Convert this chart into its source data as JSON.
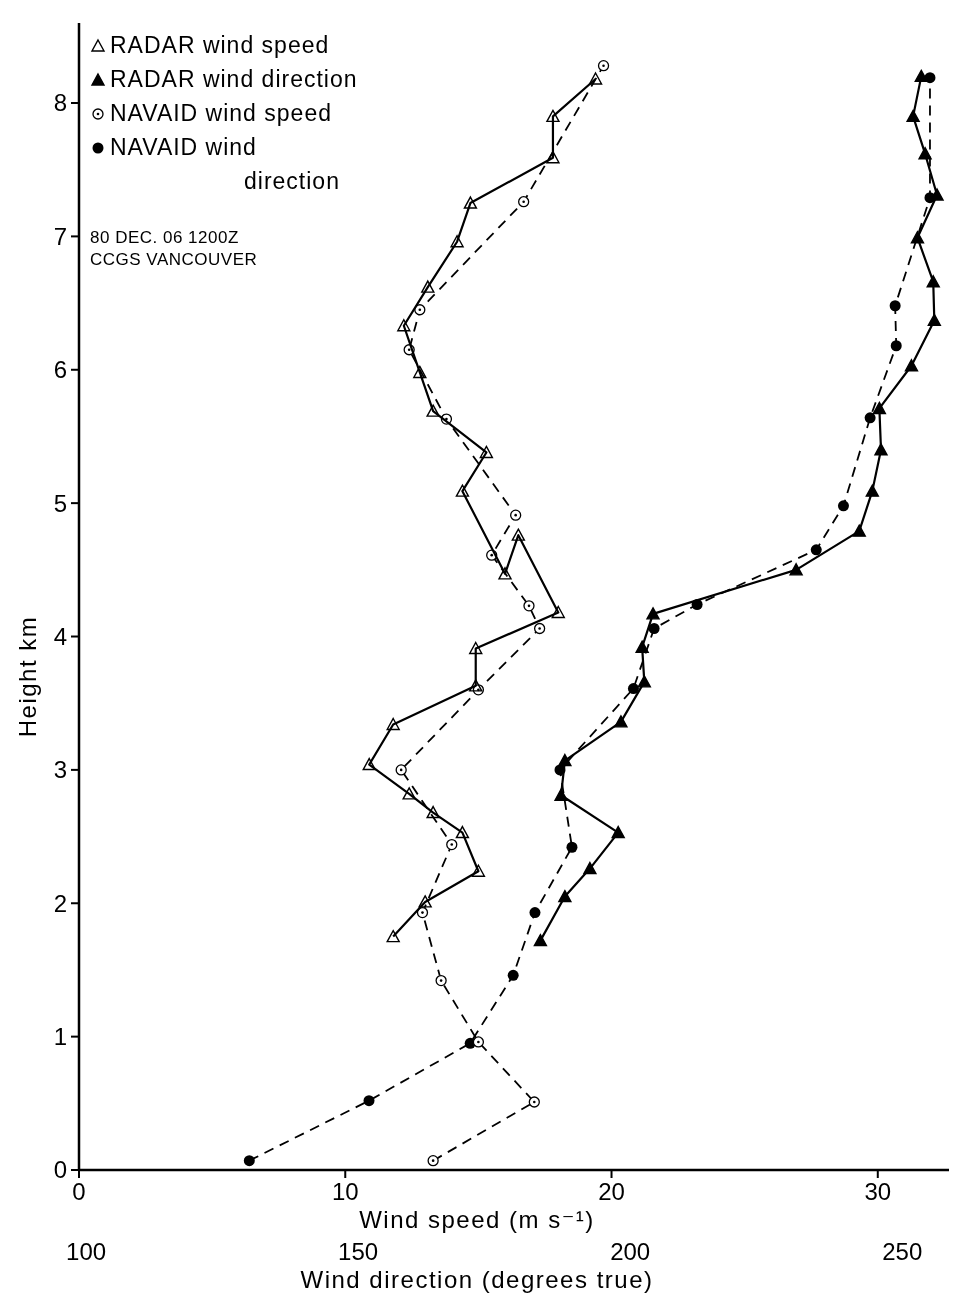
{
  "chart_data": {
    "type": "line",
    "xlabel": "Wind speed (m s⁻¹)",
    "x2label": "Wind direction (degrees true)",
    "ylabel": "Height  km",
    "xlim": [
      0,
      32.9
    ],
    "xticks": [
      0,
      10,
      20,
      30
    ],
    "x2lim": [
      98.7,
      259.7
    ],
    "x2ticks": [
      100,
      150,
      200,
      250
    ],
    "ylim": [
      0,
      8.6
    ],
    "yticks": [
      0,
      1,
      2,
      3,
      4,
      5,
      6,
      7,
      8
    ],
    "legend": "top left",
    "grid": false,
    "annotations": [
      "80 DEC. 06   1200Z",
      "CCGS VANCOUVER"
    ],
    "series": [
      {
        "name": "RADAR wind speed",
        "color": "#000000",
        "marker": "triangle",
        "line_style": "solid",
        "x": [
          11.8,
          13.0,
          15.0,
          14.4,
          13.3,
          12.4,
          10.9,
          11.8,
          14.9,
          14.9,
          18.0,
          16.5,
          16.0,
          14.4,
          15.3,
          13.3,
          12.8,
          12.2,
          13.1,
          14.2,
          14.7,
          17.8,
          17.8,
          19.4
        ],
        "values": [
          1.75,
          2.01,
          2.24,
          2.53,
          2.68,
          2.82,
          3.04,
          3.34,
          3.63,
          3.91,
          4.18,
          4.76,
          4.47,
          5.09,
          5.38,
          5.69,
          5.98,
          6.33,
          6.62,
          6.96,
          7.25,
          7.59,
          7.9,
          8.18
        ]
      },
      {
        "name": "RADAR wind direction",
        "color": "#000000",
        "marker": "triangle",
        "line_style": "solid",
        "axis": "x2",
        "x": [
          183.5,
          188.0,
          192.6,
          197.8,
          187.3,
          188.0,
          198.3,
          202.6,
          202.2,
          204.2,
          230.5,
          242.1,
          244.5,
          246.1,
          245.8,
          251.7,
          255.9,
          255.7,
          252.8,
          256.4,
          254.2,
          252.0,
          253.5
        ],
        "values": [
          1.72,
          2.05,
          2.26,
          2.53,
          2.81,
          3.07,
          3.36,
          3.66,
          3.92,
          4.17,
          4.5,
          4.79,
          5.09,
          5.4,
          5.71,
          6.03,
          6.37,
          6.66,
          6.99,
          7.31,
          7.62,
          7.9,
          8.2
        ]
      },
      {
        "name": "NAVAID wind speed",
        "color": "#000000",
        "marker": "circle",
        "line_style": "dashed",
        "x": [
          13.3,
          17.1,
          15.0,
          13.6,
          12.9,
          14.0,
          12.1,
          15.0,
          17.3,
          16.9,
          15.5,
          16.4,
          13.8,
          12.4,
          12.8,
          16.7,
          19.7
        ],
        "values": [
          0.07,
          0.51,
          0.96,
          1.42,
          1.93,
          2.44,
          3.0,
          3.6,
          4.06,
          4.23,
          4.61,
          4.91,
          5.63,
          6.15,
          6.45,
          7.26,
          8.28
        ]
      },
      {
        "name": "NAVAID wind direction",
        "color": "#000000",
        "marker": "circle",
        "line_style": "dashed",
        "axis": "x2",
        "x": [
          130.0,
          152.0,
          170.6,
          178.5,
          182.5,
          189.3,
          187.1,
          200.6,
          204.4,
          212.3,
          234.2,
          239.2,
          244.1,
          248.9,
          248.7,
          255.1,
          255.1
        ],
        "values": [
          0.07,
          0.52,
          0.95,
          1.46,
          1.93,
          2.42,
          3.0,
          3.61,
          4.06,
          4.24,
          4.65,
          4.98,
          5.64,
          6.18,
          6.48,
          7.29,
          8.19
        ]
      }
    ]
  }
}
